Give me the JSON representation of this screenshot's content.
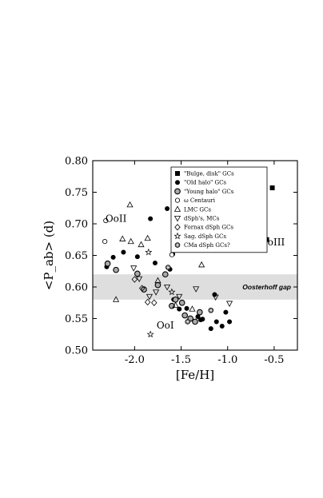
{
  "chart_data": {
    "type": "scatter",
    "xlabel": "[Fe/H]",
    "ylabel": "<P_ab> (d)",
    "xlim": [
      -2.45,
      -0.25
    ],
    "ylim": [
      0.5,
      0.8
    ],
    "x_ticks": [
      -2.0,
      -1.5,
      -1.0,
      -0.5
    ],
    "x_tick_labels": [
      "-2.0",
      "-1.5",
      "-1.0",
      "-0.5"
    ],
    "y_ticks": [
      0.5,
      0.55,
      0.6,
      0.65,
      0.7,
      0.75,
      0.8
    ],
    "y_tick_labels": [
      "0.50",
      "0.55",
      "0.60",
      "0.65",
      "0.70",
      "0.75",
      "0.80"
    ],
    "grid": false,
    "legend_position": "top-right",
    "gap_band": {
      "y0": 0.58,
      "y1": 0.62,
      "label": "Oosterhoff gap",
      "color": "#dedede"
    },
    "region_labels": [
      {
        "text": "OoII",
        "x": -2.2,
        "y": 0.703
      },
      {
        "text": "OoI",
        "x": -1.67,
        "y": 0.534
      },
      {
        "text": "OoIII",
        "x": -0.52,
        "y": 0.666
      }
    ],
    "series": [
      {
        "name": "\"Bulge, disk\" GCs",
        "marker": "square-filled",
        "points": [
          [
            -0.52,
            0.757
          ],
          [
            -0.58,
            0.675
          ]
        ]
      },
      {
        "name": "\"Old halo\" GCs",
        "marker": "circle-filled",
        "points": [
          [
            -2.3,
            0.632
          ],
          [
            -2.23,
            0.647
          ],
          [
            -2.12,
            0.655
          ],
          [
            -1.97,
            0.648
          ],
          [
            -1.83,
            0.708
          ],
          [
            -1.78,
            0.638
          ],
          [
            -1.65,
            0.724
          ],
          [
            -1.59,
            0.652
          ],
          [
            -1.62,
            0.628
          ],
          [
            -1.58,
            0.58
          ],
          [
            -1.52,
            0.565
          ],
          [
            -1.44,
            0.566
          ],
          [
            -1.32,
            0.553
          ],
          [
            -1.29,
            0.548
          ],
          [
            -1.27,
            0.549
          ],
          [
            -1.18,
            0.534
          ],
          [
            -1.14,
            0.588
          ],
          [
            -1.12,
            0.545
          ],
          [
            -1.06,
            0.538
          ],
          [
            -0.98,
            0.545
          ],
          [
            -1.02,
            0.56
          ]
        ]
      },
      {
        "name": "\"Young halo\" GCs",
        "marker": "circle-double",
        "points": [
          [
            -2.29,
            0.637
          ],
          [
            -2.2,
            0.627
          ],
          [
            -1.97,
            0.621
          ],
          [
            -1.9,
            0.596
          ],
          [
            -1.75,
            0.603
          ],
          [
            -1.67,
            0.62
          ],
          [
            -1.6,
            0.57
          ],
          [
            -1.56,
            0.58
          ],
          [
            -1.49,
            0.575
          ],
          [
            -1.46,
            0.555
          ],
          [
            -1.4,
            0.55
          ],
          [
            -1.35,
            0.545
          ],
          [
            -1.3,
            0.56
          ]
        ]
      },
      {
        "name": "ω Centauri",
        "marker": "circle-open",
        "points": [
          [
            -2.31,
            0.705
          ],
          [
            -2.32,
            0.672
          ],
          [
            -1.6,
            0.651
          ]
        ]
      },
      {
        "name": "LMC GCs",
        "marker": "triangle-up",
        "points": [
          [
            -2.05,
            0.73
          ],
          [
            -2.13,
            0.676
          ],
          [
            -2.04,
            0.672
          ],
          [
            -1.93,
            0.667
          ],
          [
            -1.86,
            0.677
          ],
          [
            -2.2,
            0.58
          ],
          [
            -1.75,
            0.61
          ],
          [
            -1.56,
            0.571
          ],
          [
            -1.38,
            0.565
          ],
          [
            -1.28,
            0.635
          ]
        ]
      },
      {
        "name": "dSph's, MCs",
        "marker": "triangle-down",
        "points": [
          [
            -2.01,
            0.63
          ],
          [
            -1.95,
            0.613
          ],
          [
            -1.84,
            0.585
          ],
          [
            -1.77,
            0.592
          ],
          [
            -1.65,
            0.6
          ],
          [
            -1.52,
            0.585
          ],
          [
            -1.34,
            0.597
          ],
          [
            -1.13,
            0.584
          ],
          [
            -0.98,
            0.574
          ]
        ]
      },
      {
        "name": "Fornax dSph GCs",
        "marker": "diamond-open",
        "points": [
          [
            -2.0,
            0.612
          ],
          [
            -1.92,
            0.598
          ],
          [
            -1.86,
            0.576
          ],
          [
            -1.79,
            0.575
          ]
        ]
      },
      {
        "name": "Sag. dSph GCs",
        "marker": "star-open",
        "points": [
          [
            -1.85,
            0.655
          ],
          [
            -1.83,
            0.525
          ],
          [
            -1.6,
            0.592
          ]
        ]
      },
      {
        "name": "CMa dSph GCs?",
        "marker": "circle-asterisk",
        "points": [
          [
            -1.64,
            0.631
          ],
          [
            -1.43,
            0.545
          ],
          [
            -1.18,
            0.563
          ]
        ]
      }
    ]
  }
}
